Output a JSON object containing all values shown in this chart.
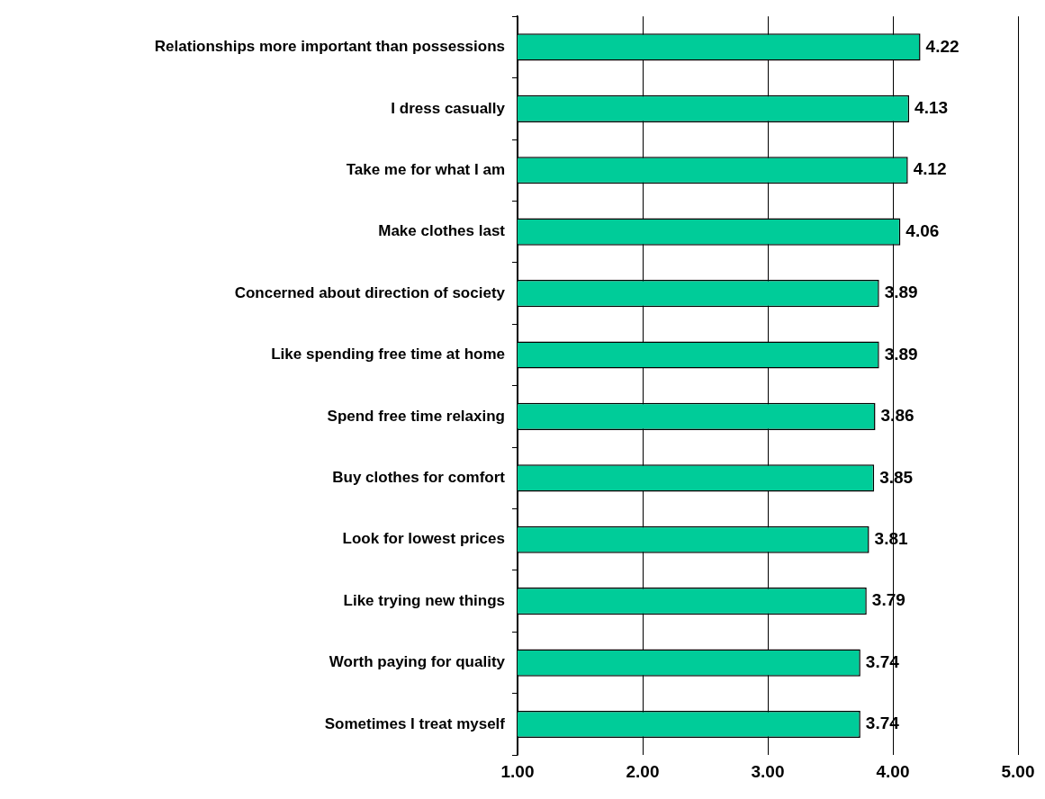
{
  "chart_data": {
    "type": "bar",
    "orientation": "horizontal",
    "categories": [
      "Relationships more important than possessions",
      "I dress casually",
      "Take me for what I am",
      "Make clothes last",
      "Concerned about direction of society",
      "Like spending free time at home",
      "Spend free time relaxing",
      "Buy clothes for comfort",
      "Look for lowest prices",
      "Like trying new things",
      "Worth paying for quality",
      "Sometimes I treat myself"
    ],
    "values": [
      4.22,
      4.13,
      4.12,
      4.06,
      3.89,
      3.89,
      3.86,
      3.85,
      3.81,
      3.79,
      3.74,
      3.74
    ],
    "color": "#00cc99",
    "xlim": [
      1,
      5
    ],
    "xticks": [
      {
        "value": 1,
        "label": "1.00"
      },
      {
        "value": 2,
        "label": "2.00"
      },
      {
        "value": 3,
        "label": "3.00"
      },
      {
        "value": 4,
        "label": "4.00"
      },
      {
        "value": 5,
        "label": "5.00"
      }
    ],
    "grid": "x",
    "data_labels": true,
    "legend": false
  }
}
